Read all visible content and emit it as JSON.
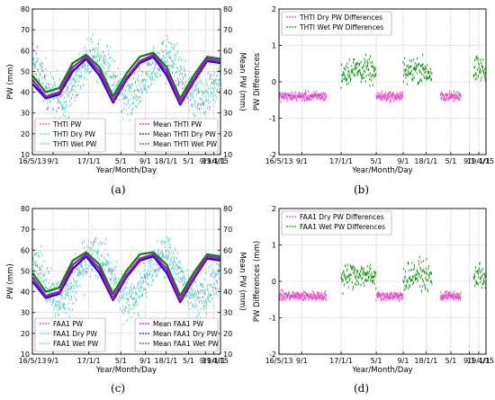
{
  "panel_labels": [
    "(a)",
    "(b)",
    "(c)",
    "(d)"
  ],
  "colors": {
    "pw": "#ff33cc",
    "dry": "#33e0e0",
    "wet": "#66dd66",
    "mean_pw": "#cc00cc",
    "mean_dry": "#0000ff",
    "mean_wet": "#008800",
    "diff_dry": "#ff33cc",
    "diff_wet": "#009900"
  },
  "chart_data": [
    {
      "type": "scatter",
      "panel": "(a)",
      "xlabel": "Year/Month/Day",
      "ylabel": "PW (mm)",
      "ylabel_right": "Mean PW (mm)",
      "xticks": [
        "16/5/13",
        "9/1",
        "17/1/1",
        "5/1",
        "9/1",
        "18/1/1",
        "5/1",
        "9/1",
        "19/1/1",
        "4/15"
      ],
      "yticks": [
        "10",
        "20",
        "30",
        "40",
        "50",
        "60",
        "70",
        "80"
      ],
      "ylim": [
        10,
        80
      ],
      "grid": true,
      "legend_left": [
        "THTI PW",
        "THTI Dry PW",
        "THTI Wet PW"
      ],
      "legend_right": [
        "Mean THTI PW",
        "Mean THTI Dry PW",
        "Mean THTI Wet PW"
      ],
      "series": [
        {
          "name": "THTI PW",
          "role": "scatter_pw"
        },
        {
          "name": "THTI Dry PW",
          "role": "scatter_dry"
        },
        {
          "name": "THTI Wet PW",
          "role": "scatter_wet"
        },
        {
          "name": "Mean THTI PW",
          "role": "mean",
          "values": [
            46,
            38,
            40,
            52,
            57,
            50,
            36,
            47,
            55,
            58,
            50,
            35,
            46,
            56,
            55
          ]
        },
        {
          "name": "Mean THTI Dry PW",
          "role": "mean_dry",
          "values": [
            44,
            37,
            39,
            50,
            56,
            48,
            35,
            46,
            54,
            57,
            48,
            34,
            45,
            55,
            54
          ]
        },
        {
          "name": "Mean THTI Wet PW",
          "role": "mean_wet",
          "values": [
            48,
            40,
            42,
            54,
            58,
            52,
            38,
            49,
            57,
            59,
            52,
            37,
            48,
            57,
            56
          ]
        }
      ]
    },
    {
      "type": "scatter",
      "panel": "(b)",
      "xlabel": "Year/Month/Day",
      "ylabel": "PW Differences",
      "xticks": [
        "16/5/13",
        "9/1",
        "17/1/1",
        "5/1",
        "9/1",
        "18/1/1",
        "5/1",
        "9/1",
        "19/1/1",
        "4/15"
      ],
      "yticks": [
        "-2",
        "-1",
        "0",
        "1",
        "2"
      ],
      "ylim": [
        -2,
        2
      ],
      "grid": true,
      "legend": [
        "THTI Dry PW Differences",
        "THTI Wet PW Differences"
      ],
      "series": [
        {
          "name": "THTI Dry PW Differences",
          "role": "diff_dry",
          "center": -0.4
        },
        {
          "name": "THTI Wet PW Differences",
          "role": "diff_wet",
          "center": 0.2
        }
      ]
    },
    {
      "type": "scatter",
      "panel": "(c)",
      "xlabel": "Year/Month/Day",
      "ylabel": "PW (mm)",
      "ylabel_right": "Mean PW (mm)",
      "xticks": [
        "16/5/13",
        "9/1",
        "17/1/1",
        "5/1",
        "9/1",
        "18/1/1",
        "5/1",
        "9/1",
        "19/1/1",
        "4/15"
      ],
      "yticks": [
        "10",
        "20",
        "30",
        "40",
        "50",
        "60",
        "70",
        "80"
      ],
      "ylim": [
        10,
        80
      ],
      "grid": true,
      "legend_left": [
        "FAA1 PW",
        "FAA1 Dry PW",
        "FAA1 Wet PW"
      ],
      "legend_right": [
        "Mean FAA1 PW",
        "Mean FAA1 Dry PW",
        "Mean FAA1 Wet PW"
      ],
      "series": [
        {
          "name": "FAA1 PW",
          "role": "scatter_pw"
        },
        {
          "name": "FAA1 Dry PW",
          "role": "scatter_dry"
        },
        {
          "name": "FAA1 Wet PW",
          "role": "scatter_wet"
        },
        {
          "name": "Mean FAA1 PW",
          "role": "mean",
          "values": [
            47,
            38,
            40,
            53,
            58,
            51,
            37,
            48,
            56,
            58,
            51,
            36,
            47,
            57,
            56
          ]
        },
        {
          "name": "Mean FAA1 Dry PW",
          "role": "mean_dry",
          "values": [
            45,
            37,
            39,
            51,
            57,
            49,
            36,
            47,
            55,
            57,
            49,
            35,
            46,
            56,
            55
          ]
        },
        {
          "name": "Mean FAA1 Wet PW",
          "role": "mean_wet",
          "values": [
            49,
            40,
            42,
            55,
            59,
            53,
            39,
            50,
            58,
            59,
            53,
            38,
            49,
            58,
            57
          ]
        }
      ]
    },
    {
      "type": "scatter",
      "panel": "(d)",
      "xlabel": "Year/Month/Day",
      "ylabel": "PW Differences (mm)",
      "xticks": [
        "16/5/13",
        "9/1",
        "17/1/1",
        "5/1",
        "9/1",
        "18/1/1",
        "5/1",
        "9/1",
        "19/1/1",
        "4/15"
      ],
      "yticks": [
        "-2",
        "-1",
        "0",
        "1",
        "2"
      ],
      "ylim": [
        -2,
        2
      ],
      "grid": true,
      "legend": [
        "FAA1 Dry PW Differences",
        "FAA1 Wet PW Differences"
      ],
      "series": [
        {
          "name": "FAA1 Dry PW Differences",
          "role": "diff_dry",
          "center": -0.4
        },
        {
          "name": "FAA1 Wet PW Differences",
          "role": "diff_wet",
          "center": 0.05
        }
      ]
    }
  ]
}
